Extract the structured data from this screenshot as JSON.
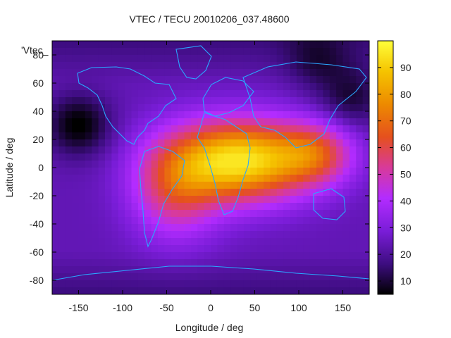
{
  "chart_data": {
    "type": "heatmap",
    "title": "VTEC / TECU 20010206_037.48600",
    "corner_label": "'Vtec_",
    "xlabel": "Longitude / deg",
    "ylabel": "Latitude / deg",
    "xlim": [
      -180,
      180
    ],
    "ylim": [
      -90,
      90
    ],
    "xticks": [
      -150,
      -100,
      -50,
      0,
      50,
      100,
      150
    ],
    "yticks": [
      -80,
      -60,
      -40,
      -20,
      0,
      20,
      40,
      60,
      80
    ],
    "colorbar": {
      "range": [
        5,
        100
      ],
      "ticks": [
        10,
        20,
        30,
        40,
        50,
        60,
        70,
        80,
        90
      ],
      "colors": [
        "#000000",
        "#3d0d80",
        "#7a1dd8",
        "#b32cff",
        "#d83a9a",
        "#e5501e",
        "#ed8a00",
        "#f5c400",
        "#ffff3a"
      ]
    },
    "field_model": {
      "background_tecu": 24,
      "peak_tecu": 95,
      "peak_center_lon": 35,
      "peak_center_lat": 5,
      "lobes": [
        {
          "lon": 35,
          "lat": 5,
          "amplitude": 70,
          "sigma_lon": 55,
          "sigma_lat": 20
        },
        {
          "lon": -40,
          "lat": -15,
          "amplitude": 30,
          "sigma_lon": 35,
          "sigma_lat": 25
        },
        {
          "lon": 120,
          "lat": 10,
          "amplitude": 30,
          "sigma_lon": 30,
          "sigma_lat": 15
        }
      ],
      "lows": [
        {
          "lon": -150,
          "lat": 30,
          "amplitude": -20
        },
        {
          "lon": 160,
          "lat": 50,
          "amplitude": -14
        },
        {
          "lon": 120,
          "lat": 75,
          "amplitude": -10
        }
      ]
    }
  }
}
